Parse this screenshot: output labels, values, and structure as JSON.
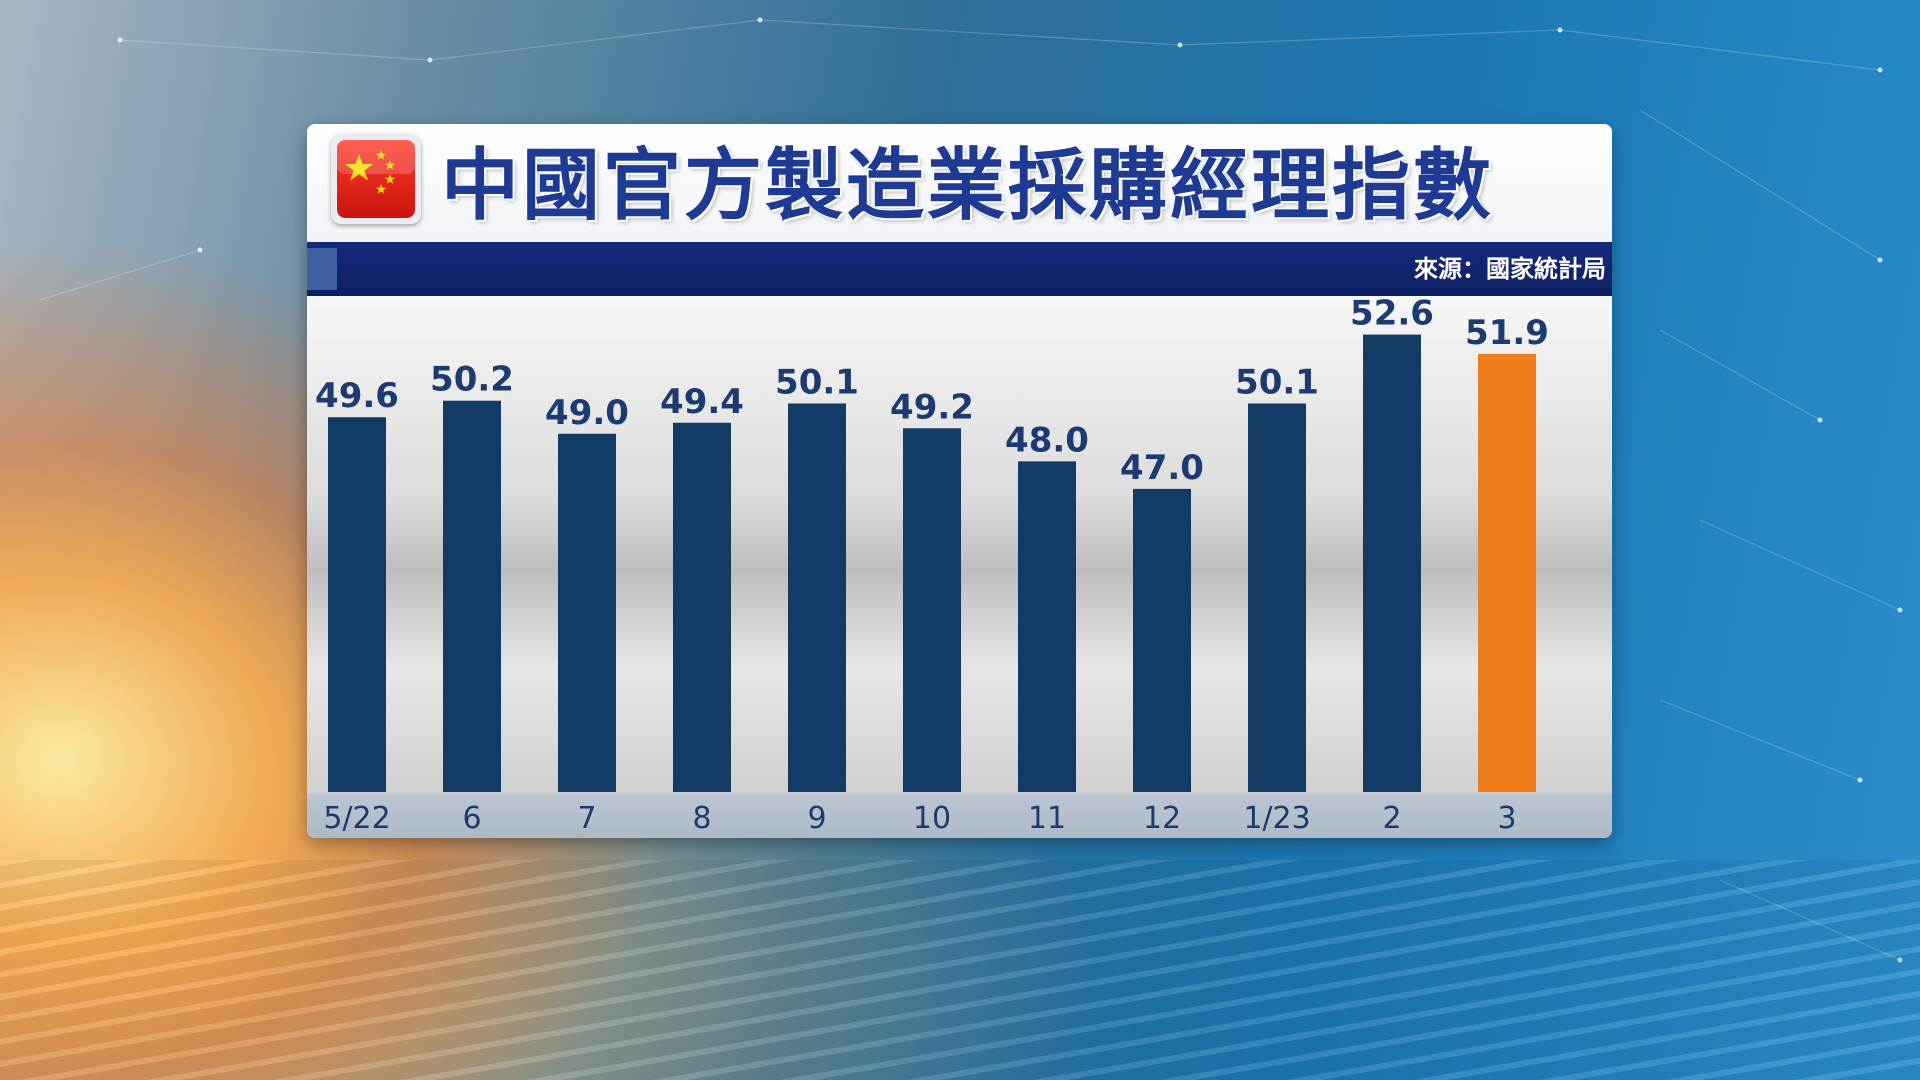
{
  "header": {
    "title": "中國官方製造業採購經理指數",
    "source": "來源：國家統計局",
    "flag_icon": "china-flag-icon"
  },
  "colors": {
    "bar": "#123b66",
    "highlight_bar": "#ee7d1b",
    "title": "#1f3a93",
    "source_bar": "#13246e"
  },
  "chart_data": {
    "type": "bar",
    "title": "中國官方製造業採購經理指數",
    "xlabel": "",
    "ylabel": "",
    "categories": [
      "5/22",
      "6",
      "7",
      "8",
      "9",
      "10",
      "11",
      "12",
      "1/23",
      "2",
      "3"
    ],
    "values": [
      49.6,
      50.2,
      49.0,
      49.4,
      50.1,
      49.2,
      48.0,
      47.0,
      50.1,
      52.6,
      51.9
    ],
    "value_labels": [
      "49.6",
      "50.2",
      "49.0",
      "49.4",
      "50.1",
      "49.2",
      "48.0",
      "47.0",
      "50.1",
      "52.6",
      "51.9"
    ],
    "highlight_index": 10,
    "ylim": [
      36,
      54
    ],
    "grid": false,
    "legend": "none"
  }
}
